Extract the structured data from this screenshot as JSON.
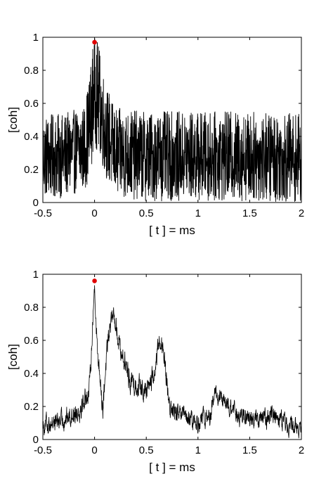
{
  "chart_data": [
    {
      "type": "line",
      "xlabel": "[ t ] = ms",
      "ylabel": "[coh]",
      "xlim": [
        -0.5,
        2
      ],
      "ylim": [
        0,
        1
      ],
      "xticks": [
        -0.5,
        0,
        0.5,
        1,
        1.5,
        2
      ],
      "xtick_labels": [
        "-0.5",
        "0",
        "0.5",
        "1",
        "1.5",
        "2"
      ],
      "yticks": [
        0,
        0.2,
        0.4,
        0.6,
        0.8,
        1
      ],
      "ytick_labels": [
        "0",
        "0.2",
        "0.4",
        "0.6",
        "0.8",
        "1"
      ],
      "grid": false,
      "line_color": "#000000",
      "marker_color": "#e00000",
      "peak": {
        "x": 0,
        "y": 0.97
      },
      "envelope": {
        "x": [
          -0.5,
          -0.3,
          -0.1,
          -0.05,
          0,
          0.05,
          0.1,
          0.2,
          0.5,
          1.0,
          1.5,
          2.0
        ],
        "base": [
          0.28,
          0.28,
          0.33,
          0.45,
          0.7,
          0.6,
          0.45,
          0.3,
          0.28,
          0.28,
          0.28,
          0.27
        ],
        "spread": [
          0.16,
          0.16,
          0.16,
          0.2,
          0.22,
          0.2,
          0.18,
          0.17,
          0.17,
          0.17,
          0.17,
          0.17
        ]
      }
    },
    {
      "type": "line",
      "xlabel": "[ t ] = ms",
      "ylabel": "[coh]",
      "xlim": [
        -0.5,
        2
      ],
      "ylim": [
        0,
        1
      ],
      "xticks": [
        -0.5,
        0,
        0.5,
        1,
        1.5,
        2
      ],
      "xtick_labels": [
        "-0.5",
        "0",
        "0.5",
        "1",
        "1.5",
        "2"
      ],
      "yticks": [
        0,
        0.2,
        0.4,
        0.6,
        0.8,
        1
      ],
      "ytick_labels": [
        "0",
        "0.2",
        "0.4",
        "0.6",
        "0.8",
        "1"
      ],
      "grid": false,
      "line_color": "#000000",
      "marker_color": "#e00000",
      "peak": {
        "x": 0,
        "y": 0.96
      },
      "envelope": {
        "x": [
          -0.5,
          -0.3,
          -0.15,
          -0.05,
          0,
          0.03,
          0.08,
          0.12,
          0.18,
          0.25,
          0.35,
          0.5,
          0.58,
          0.63,
          0.68,
          0.72,
          0.8,
          1.0,
          1.12,
          1.17,
          1.25,
          1.4,
          1.6,
          1.75,
          1.85,
          2.0
        ],
        "base": [
          0.09,
          0.12,
          0.18,
          0.3,
          0.93,
          0.5,
          0.2,
          0.55,
          0.78,
          0.55,
          0.35,
          0.3,
          0.4,
          0.62,
          0.45,
          0.2,
          0.15,
          0.1,
          0.15,
          0.28,
          0.22,
          0.14,
          0.12,
          0.16,
          0.1,
          0.06
        ],
        "spread": [
          0.05,
          0.05,
          0.06,
          0.06,
          0.04,
          0.08,
          0.08,
          0.06,
          0.05,
          0.06,
          0.06,
          0.06,
          0.06,
          0.05,
          0.06,
          0.05,
          0.05,
          0.05,
          0.05,
          0.05,
          0.05,
          0.05,
          0.05,
          0.05,
          0.05,
          0.04
        ]
      }
    }
  ]
}
